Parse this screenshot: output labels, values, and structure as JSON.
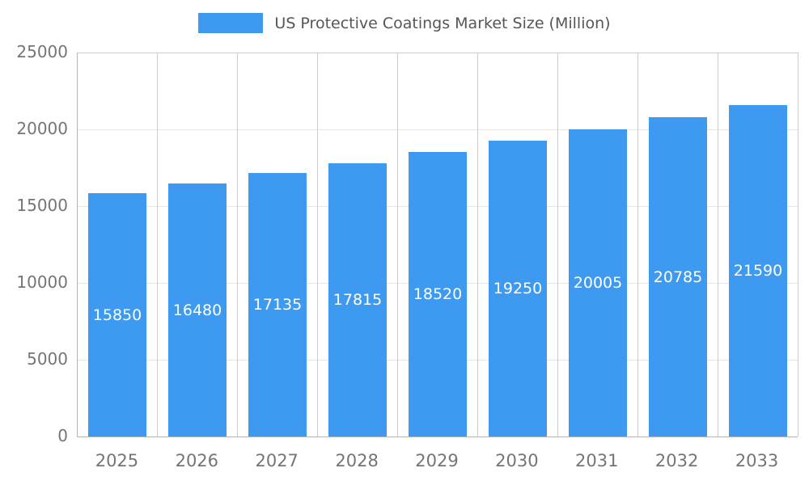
{
  "legend": {
    "label": "US Protective Coatings Market Size (Million)"
  },
  "colors": {
    "bar": "#3d9af0",
    "axis_text": "#757575",
    "grid_vertical": "#cccccc",
    "grid_horizontal": "#e6e6e6",
    "axis_line": "#b4b4b4",
    "title_text": "#565656",
    "bar_label_text": "#ffffff"
  },
  "chart_data": {
    "type": "bar",
    "title": "US Protective Coatings Market Size (Million)",
    "categories": [
      "2025",
      "2026",
      "2027",
      "2028",
      "2029",
      "2030",
      "2031",
      "2032",
      "2033"
    ],
    "values": [
      15850,
      16480,
      17135,
      17815,
      18520,
      19250,
      20005,
      20785,
      21590
    ],
    "xlabel": "",
    "ylabel": "",
    "ylim": [
      0,
      25000
    ],
    "yticks": [
      0,
      5000,
      10000,
      15000,
      20000,
      25000
    ],
    "grid": true,
    "legend_position": "top",
    "bar_labels_inside": true
  }
}
